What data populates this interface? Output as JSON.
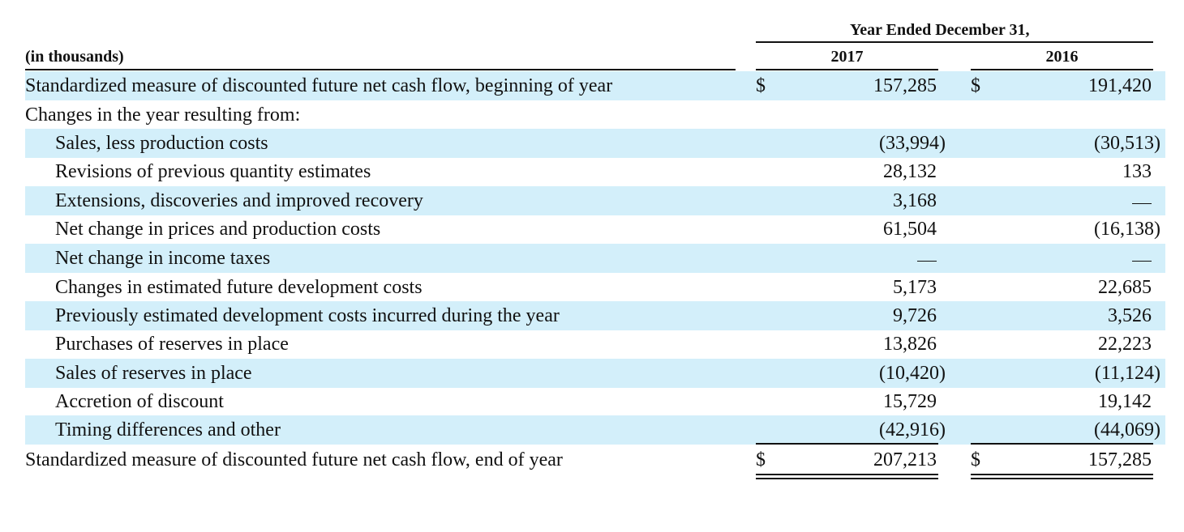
{
  "header": {
    "group_label": "Year Ended December 31,",
    "units_label": "(in thousands)",
    "columns": [
      "2017",
      "2016"
    ]
  },
  "rows": [
    {
      "label": "Standardized measure of discounted future net cash flow, beginning of year",
      "indent": false,
      "shaded": true,
      "currency": true,
      "values": [
        "157,285",
        "191,420"
      ]
    },
    {
      "label": "Changes in the year resulting from:",
      "indent": false,
      "shaded": false,
      "currency": false,
      "values": [
        "",
        ""
      ]
    },
    {
      "label": "Sales, less production costs",
      "indent": true,
      "shaded": true,
      "currency": false,
      "values": [
        "(33,994)",
        "(30,513)"
      ]
    },
    {
      "label": "Revisions of previous quantity estimates",
      "indent": true,
      "shaded": false,
      "currency": false,
      "values": [
        "28,132",
        "133"
      ]
    },
    {
      "label": "Extensions, discoveries and improved recovery",
      "indent": true,
      "shaded": true,
      "currency": false,
      "values": [
        "3,168",
        "—"
      ]
    },
    {
      "label": "Net change in prices and production costs",
      "indent": true,
      "shaded": false,
      "currency": false,
      "values": [
        "61,504",
        "(16,138)"
      ]
    },
    {
      "label": "Net change in income taxes",
      "indent": true,
      "shaded": true,
      "currency": false,
      "values": [
        "—",
        "—"
      ]
    },
    {
      "label": "Changes in estimated future development costs",
      "indent": true,
      "shaded": false,
      "currency": false,
      "values": [
        "5,173",
        "22,685"
      ]
    },
    {
      "label": "Previously estimated development costs incurred during the year",
      "indent": true,
      "shaded": true,
      "currency": false,
      "values": [
        "9,726",
        "3,526"
      ]
    },
    {
      "label": "Purchases of reserves in place",
      "indent": true,
      "shaded": false,
      "currency": false,
      "values": [
        "13,826",
        "22,223"
      ]
    },
    {
      "label": "Sales of reserves in place",
      "indent": true,
      "shaded": true,
      "currency": false,
      "values": [
        "(10,420)",
        "(11,124)"
      ]
    },
    {
      "label": "Accretion of discount",
      "indent": true,
      "shaded": false,
      "currency": false,
      "values": [
        "15,729",
        "19,142"
      ]
    },
    {
      "label": "Timing differences and other",
      "indent": true,
      "shaded": true,
      "currency": false,
      "values": [
        "(42,916)",
        "(44,069)"
      ]
    },
    {
      "label": "Standardized measure of discounted future net cash flow, end of year",
      "indent": false,
      "shaded": false,
      "currency": true,
      "values": [
        "207,213",
        "157,285"
      ]
    }
  ],
  "currency_symbol": "$"
}
